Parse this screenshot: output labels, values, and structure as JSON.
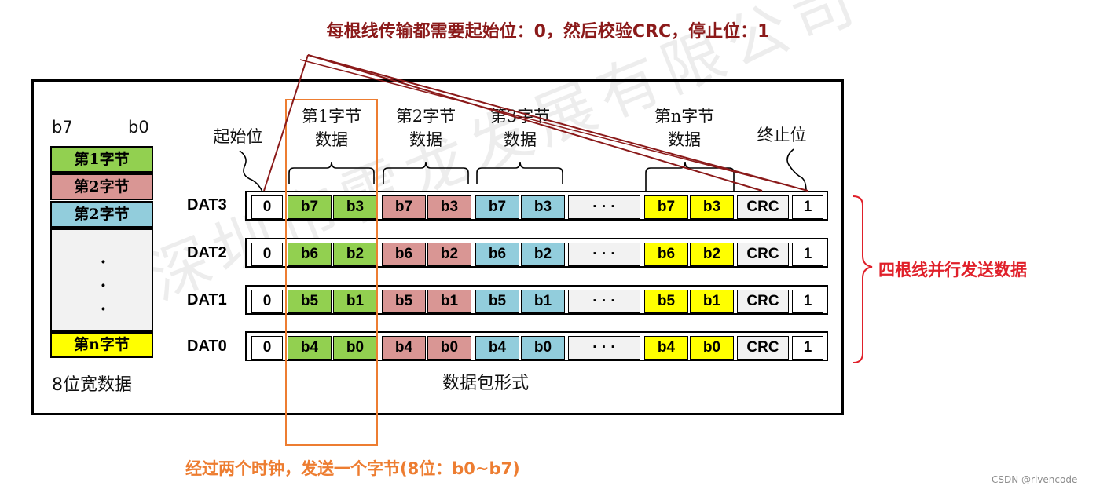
{
  "top_note": "每根线传输都需要起始位：0，然后校验CRC，停止位：1",
  "bottom_note": "经过两个时钟，发送一个字节(8位：b0~b7)",
  "right_note": "四根线并行发送数据",
  "credit": "CSDN @rivencode",
  "watermark": "深圳市雷龙发展有限公司",
  "left_panel": {
    "b7": "b7",
    "b0": "b0",
    "byte1": "第1字节",
    "byte2a": "第2字节",
    "byte2b": "第2字节",
    "dot": "·",
    "byten": "第n字节",
    "caption": "8位宽数据"
  },
  "headers": {
    "start": "起始位",
    "byte1_l1": "第1字节",
    "byte1_l2": "数据",
    "byte2_l1": "第2字节",
    "byte2_l2": "数据",
    "byte3_l1": "第3字节",
    "byte3_l2": "数据",
    "byten_l1": "第n字节",
    "byten_l2": "数据",
    "stop": "终止位"
  },
  "packet_caption": "数据包形式",
  "rows": [
    {
      "label": "DAT3",
      "start": "0",
      "b_hi": "b7",
      "b_lo": "b3",
      "dots": "· · ·",
      "crc": "CRC",
      "stop": "1"
    },
    {
      "label": "DAT2",
      "start": "0",
      "b_hi": "b6",
      "b_lo": "b2",
      "dots": "· · ·",
      "crc": "CRC",
      "stop": "1"
    },
    {
      "label": "DAT1",
      "start": "0",
      "b_hi": "b5",
      "b_lo": "b1",
      "dots": "· · ·",
      "crc": "CRC",
      "stop": "1"
    },
    {
      "label": "DAT0",
      "start": "0",
      "b_hi": "b4",
      "b_lo": "b0",
      "dots": "· · ·",
      "crc": "CRC",
      "stop": "1"
    }
  ],
  "colors": {
    "byte1": "#92d050",
    "byte2": "#d99694",
    "byte3": "#92cddc",
    "byten": "#ffff00",
    "crc": "#f2f2f2",
    "dots": "#f2f2f2",
    "highlight": "#ed7d31",
    "title": "#8b1a1a",
    "right_note": "#e0202a"
  }
}
